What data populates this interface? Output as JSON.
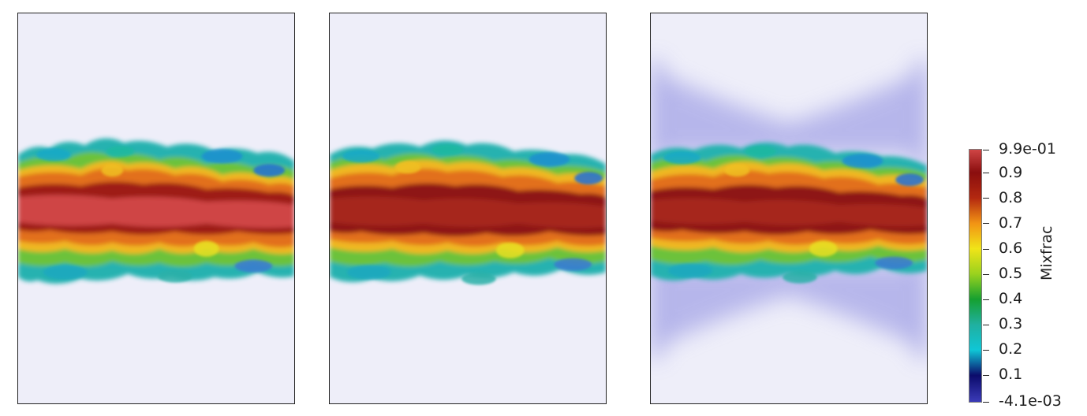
{
  "colorbar": {
    "title": "Mixfrac",
    "max_label": "9.9e-01",
    "min_label": "-4.1e-03",
    "tick_labels": [
      "0.9",
      "0.8",
      "0.7",
      "0.6",
      "0.5",
      "0.4",
      "0.3",
      "0.2",
      "0.1"
    ],
    "colormap_stops": [
      {
        "value": -0.0041,
        "color": "#3b3bb8"
      },
      {
        "value": 0.1,
        "color": "#0b0b6b"
      },
      {
        "value": 0.2,
        "color": "#0fc6d6"
      },
      {
        "value": 0.3,
        "color": "#20b0a0"
      },
      {
        "value": 0.4,
        "color": "#15a030"
      },
      {
        "value": 0.5,
        "color": "#9ad21e"
      },
      {
        "value": 0.6,
        "color": "#f0e418"
      },
      {
        "value": 0.7,
        "color": "#f29314"
      },
      {
        "value": 0.8,
        "color": "#b32810"
      },
      {
        "value": 0.9,
        "color": "#8a0e0e"
      },
      {
        "value": 0.99,
        "color": "#cf4545"
      }
    ]
  },
  "panels": [
    {
      "id": "panel-1",
      "background": "#eeeef9"
    },
    {
      "id": "panel-2",
      "background": "#eeeef9"
    },
    {
      "id": "panel-3",
      "background": "#eeeef9",
      "blue_halo": true
    }
  ]
}
